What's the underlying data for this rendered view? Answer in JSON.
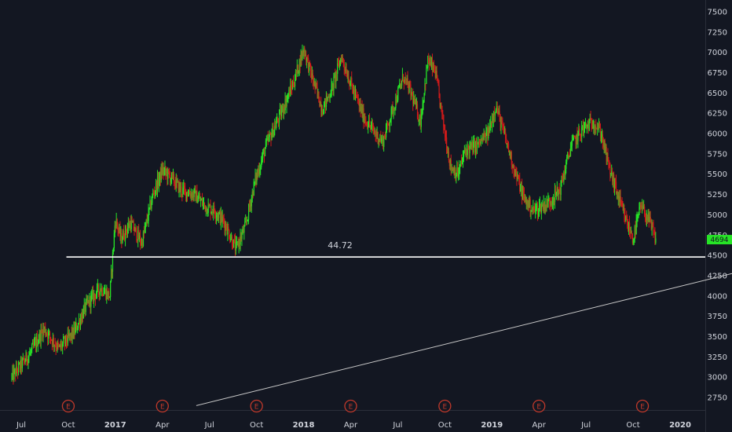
{
  "chart_data": {
    "type": "candlestick",
    "colors": {
      "background": "#131722",
      "up": "#26e426",
      "down": "#d11a1a",
      "line": "#ffffff",
      "text": "#d1d4dc",
      "earnings": "#c0392b",
      "price_label": "#26e426"
    },
    "y_ticks": [
      "7500",
      "7250",
      "7000",
      "6750",
      "6500",
      "6250",
      "6000",
      "5750",
      "5500",
      "5250",
      "5000",
      "4750",
      "4500",
      "4250",
      "4000",
      "3750",
      "3500",
      "3250",
      "3000",
      "2750"
    ],
    "x_ticks": [
      {
        "label": "Jul",
        "year": false
      },
      {
        "label": "Oct",
        "year": false
      },
      {
        "label": "2017",
        "year": true
      },
      {
        "label": "Apr",
        "year": false
      },
      {
        "label": "Jul",
        "year": false
      },
      {
        "label": "Oct",
        "year": false
      },
      {
        "label": "2018",
        "year": true
      },
      {
        "label": "Apr",
        "year": false
      },
      {
        "label": "Jul",
        "year": false
      },
      {
        "label": "Oct",
        "year": false
      },
      {
        "label": "2019",
        "year": true
      },
      {
        "label": "Apr",
        "year": false
      },
      {
        "label": "Jul",
        "year": false
      },
      {
        "label": "Oct",
        "year": false
      },
      {
        "label": "2020",
        "year": true
      }
    ],
    "ylim": [
      2650,
      7600
    ],
    "xlim": [
      2016.45,
      2020.3
    ],
    "earnings_marker": "E",
    "earnings_dates": [
      2016.75,
      2017.25,
      2017.75,
      2018.25,
      2018.75,
      2019.25,
      2019.8
    ],
    "annotation": "44.72",
    "current_price": "4694",
    "horizontal_line": {
      "value": 4480,
      "x_start": 2016.74
    },
    "trend_line": {
      "start": {
        "x": 2017.43,
        "y": 2650
      },
      "end": {
        "x": 2020.3,
        "y": 4290
      }
    },
    "price_path": [
      [
        2016.45,
        3000
      ],
      [
        2016.55,
        3300
      ],
      [
        2016.62,
        3600
      ],
      [
        2016.7,
        3350
      ],
      [
        2016.78,
        3550
      ],
      [
        2016.85,
        3900
      ],
      [
        2016.92,
        4100
      ],
      [
        2016.97,
        4000
      ],
      [
        2017.0,
        4950
      ],
      [
        2017.03,
        4700
      ],
      [
        2017.08,
        4900
      ],
      [
        2017.14,
        4650
      ],
      [
        2017.2,
        5250
      ],
      [
        2017.25,
        5550
      ],
      [
        2017.3,
        5450
      ],
      [
        2017.35,
        5300
      ],
      [
        2017.42,
        5250
      ],
      [
        2017.48,
        5100
      ],
      [
        2017.53,
        5050
      ],
      [
        2017.58,
        4900
      ],
      [
        2017.64,
        4580
      ],
      [
        2017.69,
        4850
      ],
      [
        2017.74,
        5400
      ],
      [
        2017.8,
        5850
      ],
      [
        2017.87,
        6200
      ],
      [
        2017.95,
        6650
      ],
      [
        2018.0,
        7050
      ],
      [
        2018.05,
        6650
      ],
      [
        2018.1,
        6300
      ],
      [
        2018.15,
        6550
      ],
      [
        2018.2,
        6950
      ],
      [
        2018.26,
        6550
      ],
      [
        2018.32,
        6200
      ],
      [
        2018.38,
        6000
      ],
      [
        2018.42,
        5900
      ],
      [
        2018.48,
        6350
      ],
      [
        2018.53,
        6700
      ],
      [
        2018.57,
        6500
      ],
      [
        2018.62,
        6150
      ],
      [
        2018.66,
        6900
      ],
      [
        2018.7,
        6750
      ],
      [
        2018.74,
        6150
      ],
      [
        2018.78,
        5600
      ],
      [
        2018.82,
        5500
      ],
      [
        2018.86,
        5800
      ],
      [
        2018.92,
        5850
      ],
      [
        2018.98,
        6000
      ],
      [
        2019.02,
        6350
      ],
      [
        2019.07,
        5950
      ],
      [
        2019.12,
        5550
      ],
      [
        2019.17,
        5200
      ],
      [
        2019.22,
        5050
      ],
      [
        2019.3,
        5150
      ],
      [
        2019.36,
        5300
      ],
      [
        2019.42,
        5850
      ],
      [
        2019.48,
        6050
      ],
      [
        2019.54,
        6150
      ],
      [
        2019.58,
        6000
      ],
      [
        2019.62,
        5600
      ],
      [
        2019.66,
        5300
      ],
      [
        2019.7,
        5000
      ],
      [
        2019.75,
        4700
      ],
      [
        2019.79,
        5100
      ],
      [
        2019.83,
        4950
      ],
      [
        2019.87,
        4694
      ]
    ]
  }
}
